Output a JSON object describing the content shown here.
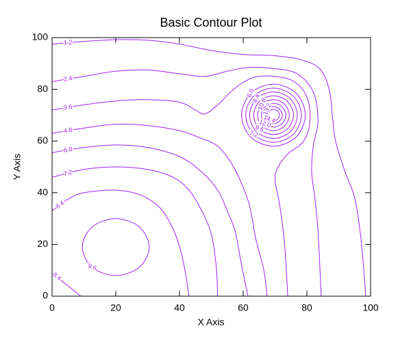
{
  "chart_data": {
    "type": "contour",
    "title": "Basic Contour Plot",
    "x_label": "X Axis",
    "y_label": "Y Axis",
    "color": "#a020f0",
    "xlim": [
      0,
      100
    ],
    "ylim": [
      0,
      100
    ],
    "xticks": [
      0,
      20,
      40,
      60,
      80,
      100
    ],
    "yticks": [
      0,
      20,
      40,
      60,
      80,
      100
    ],
    "series": [
      {
        "name": "1.2",
        "x": [
          0,
          10,
          20,
          30,
          40,
          50,
          60,
          70,
          78,
          84,
          87,
          88,
          89,
          92,
          95,
          97,
          98.5
        ],
        "y": [
          97.5,
          98.5,
          99.2,
          99,
          97.5,
          95,
          93.5,
          93,
          91.5,
          88,
          80,
          70,
          60,
          48,
          38,
          22,
          0
        ]
      },
      {
        "name": "2.4",
        "x": [
          0,
          10,
          20,
          30,
          40,
          48,
          55,
          62,
          70,
          77,
          82,
          83.5,
          82,
          81.5,
          82.5,
          83.5,
          84.5
        ],
        "y": [
          83,
          85,
          87,
          87.5,
          86,
          85,
          87,
          88.5,
          88,
          86,
          79,
          68,
          58,
          48,
          38,
          25,
          0
        ]
      },
      {
        "name": "3.6",
        "x": [
          0,
          10,
          20,
          30,
          40,
          45,
          48,
          52,
          57,
          63,
          70,
          76,
          80,
          81,
          79,
          74,
          71,
          70,
          71.5,
          73,
          74
        ],
        "y": [
          72,
          74,
          75.5,
          76,
          75,
          72,
          70.5,
          74,
          80,
          84.5,
          85,
          83,
          77,
          68,
          60,
          55,
          50,
          45,
          35,
          20,
          0
        ]
      },
      {
        "name": "4.8",
        "x": [
          0,
          10,
          20,
          30,
          40,
          47,
          52,
          56,
          59,
          62,
          64,
          66.5,
          67.5
        ],
        "y": [
          63,
          65,
          66.5,
          66,
          64,
          61,
          58,
          52,
          45,
          35,
          22,
          10,
          0
        ]
      },
      {
        "name": "6.0",
        "x": [
          0,
          10,
          20,
          30,
          40,
          47,
          52,
          55,
          57.5,
          59.5,
          61.5
        ],
        "y": [
          55.5,
          57.5,
          58.5,
          57.5,
          54,
          48,
          41,
          33,
          25,
          12,
          0
        ]
      },
      {
        "name": "7.2",
        "x": [
          0,
          10,
          20,
          30,
          38,
          43,
          47,
          50,
          51.5,
          52
        ],
        "y": [
          46,
          49,
          50,
          49,
          46,
          41,
          33,
          24,
          12,
          0
        ]
      },
      {
        "name": "8.4",
        "x": [
          0,
          5,
          10,
          20,
          28,
          34,
          38,
          40.5,
          42,
          43
        ],
        "y": [
          33,
          37.5,
          40,
          41,
          39,
          34,
          26,
          17,
          8,
          0
        ]
      },
      {
        "name": "8.4",
        "x": [
          0,
          3,
          6,
          9
        ],
        "y": [
          9,
          6,
          3,
          0
        ]
      },
      {
        "name": "9.6",
        "x": [
          30.5,
          27.4,
          20,
          12.6,
          9.5,
          12.6,
          20,
          27.4
        ],
        "y": [
          19,
          26.8,
          30,
          26.8,
          19,
          11.2,
          8,
          11.2
        ]
      },
      {
        "name": "6.0",
        "x": [
          79.5,
          76.6,
          69.5,
          62.4,
          59.5,
          62.4,
          69.5,
          76.6
        ],
        "y": [
          70,
          78.5,
          82,
          78.5,
          70,
          61.5,
          58,
          61.5
        ]
      },
      {
        "name": "7.2",
        "x": [
          78.3,
          75.7,
          69.5,
          63.3,
          60.8,
          63.3,
          69.5,
          75.7
        ],
        "y": [
          70,
          77.4,
          80.5,
          77.4,
          70,
          62.6,
          59.5,
          62.6
        ]
      },
      {
        "name": "8.4",
        "x": [
          77,
          74.8,
          69.5,
          64.2,
          62,
          64.2,
          69.5,
          74.8
        ],
        "y": [
          70,
          76.4,
          79,
          76.4,
          70,
          63.6,
          61,
          63.6
        ]
      },
      {
        "name": "9.6",
        "x": [
          75.8,
          73.9,
          69.5,
          65.1,
          63.3,
          65.1,
          69.5,
          73.9
        ],
        "y": [
          70,
          75.3,
          77.5,
          75.3,
          70,
          64.7,
          62.5,
          64.7
        ]
      },
      {
        "name": "10.8",
        "x": [
          74.5,
          73,
          69.5,
          66,
          64.5,
          66,
          69.5,
          73
        ],
        "y": [
          70,
          74.2,
          76,
          74.2,
          70,
          65.8,
          64,
          65.8
        ]
      },
      {
        "name": "12.0",
        "x": [
          73.4,
          72.2,
          69.5,
          66.8,
          65.7,
          66.8,
          69.5,
          72.2
        ],
        "y": [
          70,
          73.3,
          74.6,
          73.3,
          70,
          66.7,
          65.4,
          66.7
        ]
      },
      {
        "name": "13.2",
        "x": [
          72.3,
          71.4,
          69.5,
          67.6,
          66.8,
          67.6,
          69.5,
          71.4
        ],
        "y": [
          70,
          72.3,
          73.3,
          72.3,
          70,
          67.7,
          66.7,
          67.7
        ]
      },
      {
        "name": "14.4",
        "x": [
          71.4,
          70.8,
          69.5,
          68.2,
          67.7,
          68.2,
          69.5,
          70.8
        ],
        "y": [
          70,
          71.6,
          72.2,
          71.6,
          70,
          68.4,
          67.8,
          68.4
        ]
      }
    ]
  }
}
